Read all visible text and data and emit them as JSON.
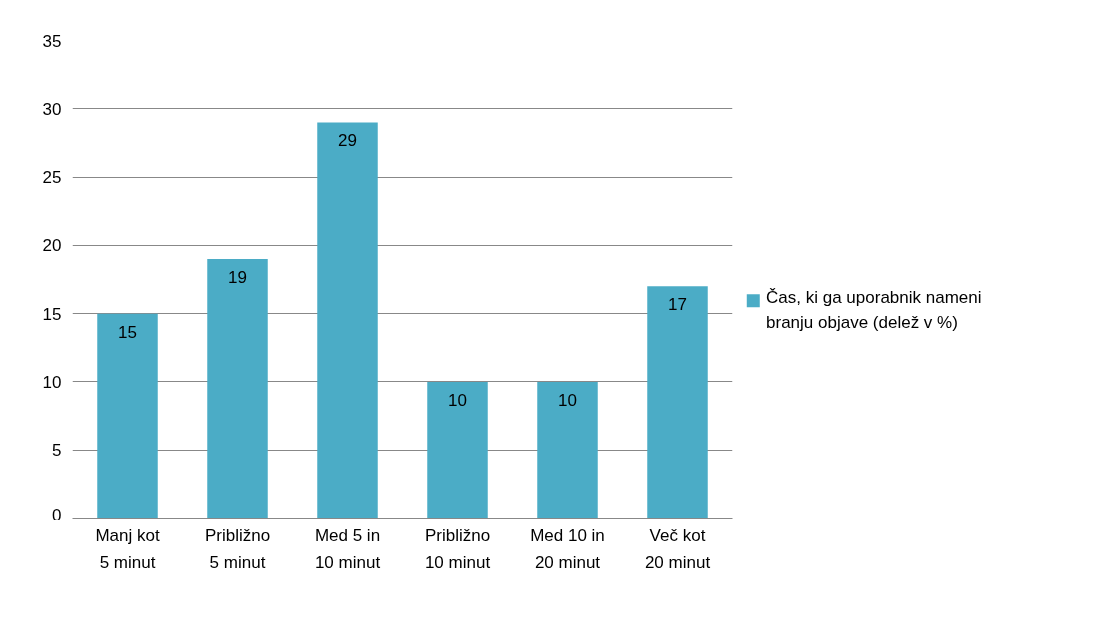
{
  "chart_data": {
    "type": "bar",
    "categories": [
      "Manj kot 5 minut",
      "Približno 5 minut",
      "Med 5 in 10 minut",
      "Približno 10 minut",
      "Med 10 in 20 minut",
      "Več kot 20 minut"
    ],
    "series": [
      {
        "name": "Čas, ki ga uporabnik nameni branju objave (delež v %)",
        "color": "#4bacc6",
        "values": [
          15,
          19,
          29,
          10,
          10,
          17
        ]
      }
    ],
    "ylim": [
      0,
      35
    ],
    "yticks": [
      0,
      5,
      10,
      15,
      20,
      25,
      30,
      35
    ],
    "grid": "y",
    "legend": "right",
    "data_labels": true
  }
}
